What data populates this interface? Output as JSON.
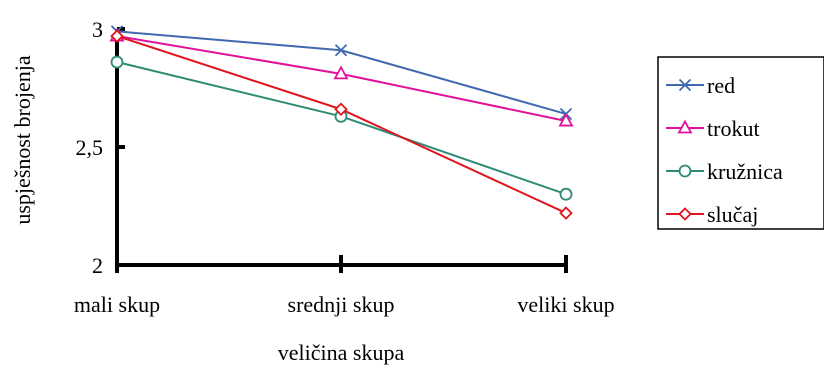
{
  "chart_data": {
    "type": "line",
    "xlabel": "veličina skupa",
    "ylabel": "uspješnost brojenja",
    "categories": [
      "mali skup",
      "srednji skup",
      "veliki skup"
    ],
    "yticks": [
      "2",
      "2,5",
      "3"
    ],
    "ylim": [
      2,
      3
    ],
    "legend_position": "right",
    "grid": false,
    "series": [
      {
        "name": "red",
        "color": "#4169b0",
        "marker": "x",
        "values": [
          2.99,
          2.91,
          2.64
        ]
      },
      {
        "name": "trokut",
        "color": "#e0119b",
        "marker": "triangle",
        "values": [
          2.97,
          2.81,
          2.61
        ]
      },
      {
        "name": "kružnica",
        "color": "#2e8b74",
        "marker": "circle",
        "values": [
          2.86,
          2.63,
          2.3
        ]
      },
      {
        "name": "slučaj",
        "color": "#e0151e",
        "marker": "diamond",
        "values": [
          2.97,
          2.66,
          2.22
        ]
      }
    ]
  }
}
